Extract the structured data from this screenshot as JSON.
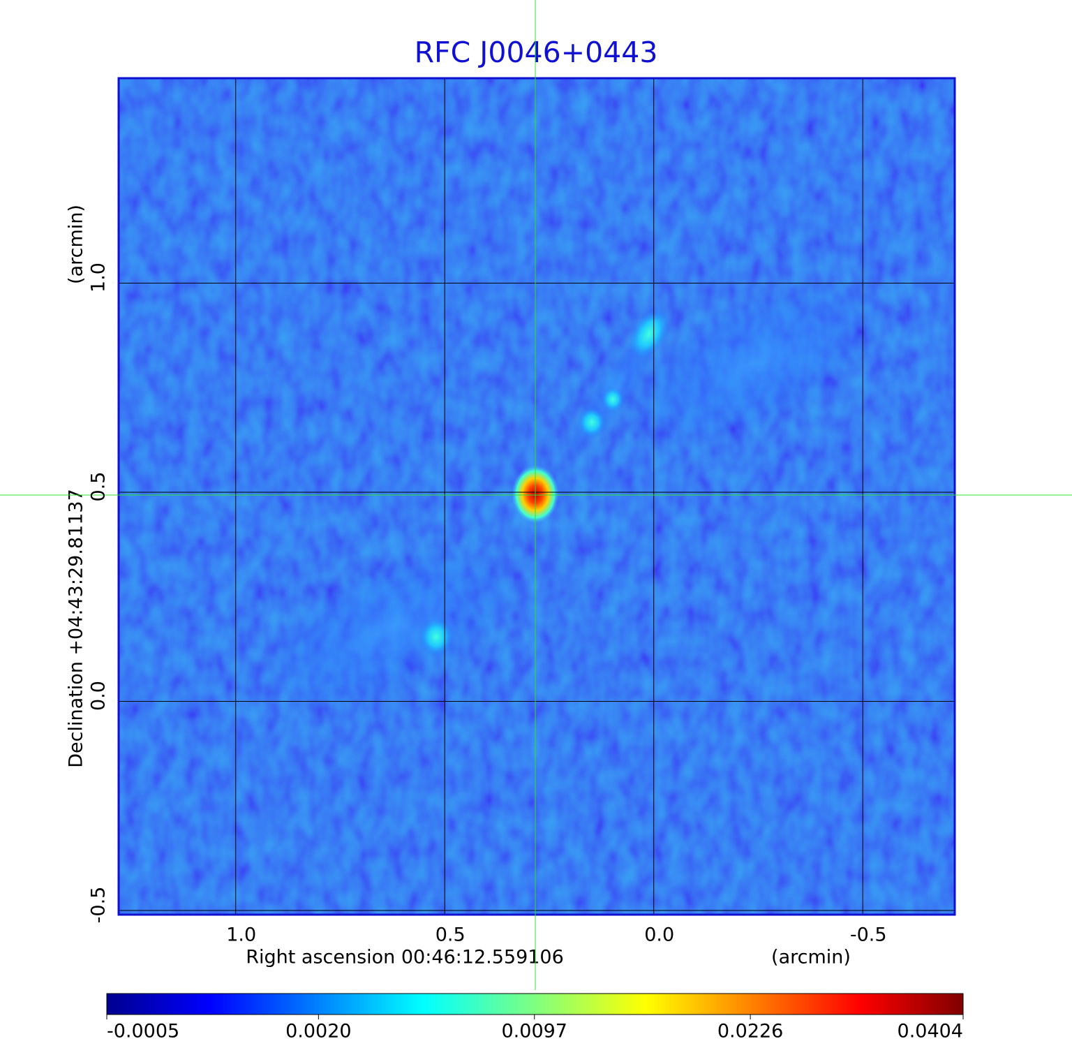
{
  "chart_data": {
    "type": "image",
    "title": "RFC J0046+0443",
    "x_label": "Right ascension  00:46:12.559106",
    "x_unit": "(arcmin)",
    "y_label": "Declination  +04:43:29.81137",
    "y_unit": "(arcmin)",
    "xlim": [
      1.28,
      -0.72
    ],
    "ylim": [
      -0.51,
      1.49
    ],
    "xticks": [
      {
        "value": 1,
        "label": "1.0"
      },
      0.5,
      {
        "value": 0,
        "label": "0.0"
      },
      -0.5
    ],
    "yticks": [
      -0.5,
      {
        "value": 0,
        "label": "0.0"
      },
      0.5,
      {
        "value": 1,
        "label": "1.0"
      }
    ],
    "grid": true,
    "colorbar": {
      "colormap": "jet",
      "scale": "sqrt",
      "lim": [
        -0.0005,
        0.0404
      ],
      "ticks": [
        -0.0005,
        {
          "value": 0.002,
          "label": "0.0020"
        },
        0.0097,
        0.0226,
        0.0404
      ]
    }
  }
}
